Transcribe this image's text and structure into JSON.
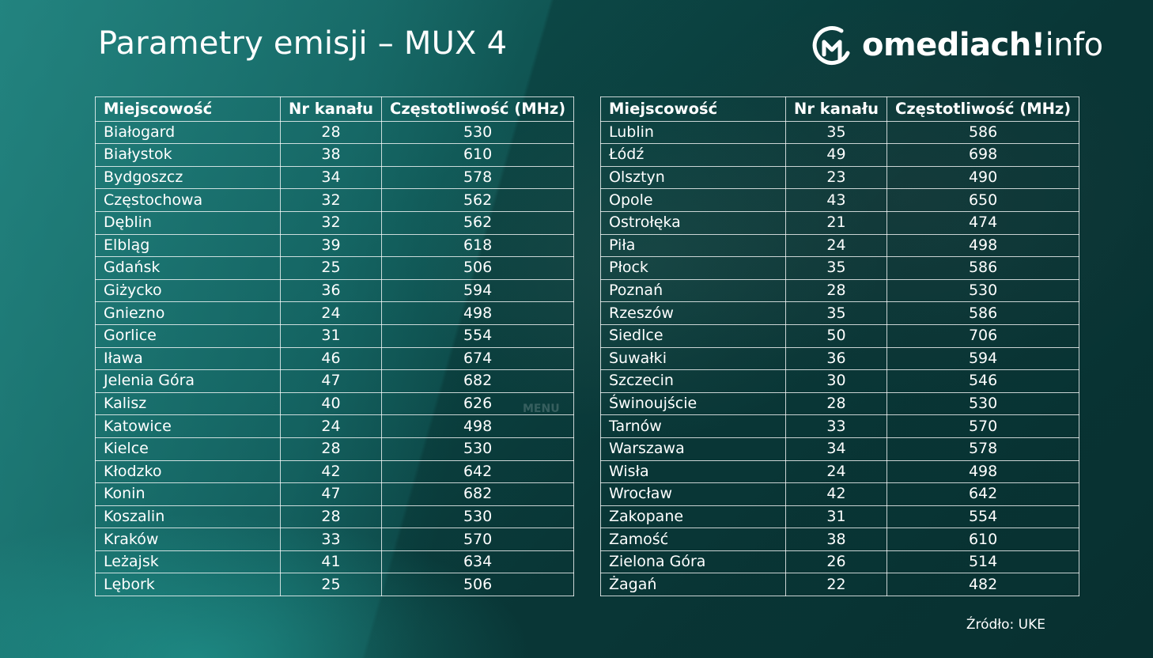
{
  "header": {
    "title": "Parametry emisji – MUX 4",
    "logo_bold": "omediach",
    "logo_light": "info",
    "logo_dot": "!"
  },
  "table": {
    "headers": {
      "city": "Miejscowość",
      "channel": "Nr kanału",
      "frequency": "Częstotliwość (MHz)"
    },
    "left_rows": [
      {
        "city": "Białogard",
        "channel": "28",
        "frequency": "530"
      },
      {
        "city": "Białystok",
        "channel": "38",
        "frequency": "610"
      },
      {
        "city": "Bydgoszcz",
        "channel": "34",
        "frequency": "578"
      },
      {
        "city": "Częstochowa",
        "channel": "32",
        "frequency": "562"
      },
      {
        "city": "Dęblin",
        "channel": "32",
        "frequency": "562"
      },
      {
        "city": "Elbląg",
        "channel": "39",
        "frequency": "618"
      },
      {
        "city": "Gdańsk",
        "channel": "25",
        "frequency": "506"
      },
      {
        "city": "Giżycko",
        "channel": "36",
        "frequency": "594"
      },
      {
        "city": "Gniezno",
        "channel": "24",
        "frequency": "498"
      },
      {
        "city": "Gorlice",
        "channel": "31",
        "frequency": "554"
      },
      {
        "city": "Iława",
        "channel": "46",
        "frequency": "674"
      },
      {
        "city": "Jelenia Góra",
        "channel": "47",
        "frequency": "682"
      },
      {
        "city": "Kalisz",
        "channel": "40",
        "frequency": "626"
      },
      {
        "city": "Katowice",
        "channel": "24",
        "frequency": "498"
      },
      {
        "city": "Kielce",
        "channel": "28",
        "frequency": "530"
      },
      {
        "city": "Kłodzko",
        "channel": "42",
        "frequency": "642"
      },
      {
        "city": "Konin",
        "channel": "47",
        "frequency": "682"
      },
      {
        "city": "Koszalin",
        "channel": "28",
        "frequency": "530"
      },
      {
        "city": "Kraków",
        "channel": "33",
        "frequency": "570"
      },
      {
        "city": "Leżajsk",
        "channel": "41",
        "frequency": "634"
      },
      {
        "city": "Lębork",
        "channel": "25",
        "frequency": "506"
      }
    ],
    "right_rows": [
      {
        "city": "Lublin",
        "channel": "35",
        "frequency": "586"
      },
      {
        "city": "Łódź",
        "channel": "49",
        "frequency": "698"
      },
      {
        "city": "Olsztyn",
        "channel": "23",
        "frequency": "490"
      },
      {
        "city": "Opole",
        "channel": "43",
        "frequency": "650"
      },
      {
        "city": "Ostrołęka",
        "channel": "21",
        "frequency": "474"
      },
      {
        "city": "Piła",
        "channel": "24",
        "frequency": "498"
      },
      {
        "city": "Płock",
        "channel": "35",
        "frequency": "586"
      },
      {
        "city": "Poznań",
        "channel": "28",
        "frequency": "530"
      },
      {
        "city": "Rzeszów",
        "channel": "35",
        "frequency": "586"
      },
      {
        "city": "Siedlce",
        "channel": "50",
        "frequency": "706"
      },
      {
        "city": "Suwałki",
        "channel": "36",
        "frequency": "594"
      },
      {
        "city": "Szczecin",
        "channel": "30",
        "frequency": "546"
      },
      {
        "city": "Świnoujście",
        "channel": "28",
        "frequency": "530"
      },
      {
        "city": "Tarnów",
        "channel": "33",
        "frequency": "570"
      },
      {
        "city": "Warszawa",
        "channel": "34",
        "frequency": "578"
      },
      {
        "city": "Wisła",
        "channel": "24",
        "frequency": "498"
      },
      {
        "city": "Wrocław",
        "channel": "42",
        "frequency": "642"
      },
      {
        "city": "Zakopane",
        "channel": "31",
        "frequency": "554"
      },
      {
        "city": "Zamość",
        "channel": "38",
        "frequency": "610"
      },
      {
        "city": "Zielona Góra",
        "channel": "26",
        "frequency": "514"
      },
      {
        "city": "Żagań",
        "channel": "22",
        "frequency": "482"
      }
    ]
  },
  "footer": {
    "source": "Źródło: UKE"
  },
  "background": {
    "ghost_menu": "MENU"
  },
  "colors": {
    "background_dark": "#0b3f3f",
    "background_teal": "#1c6d6a",
    "text": "#ffffff"
  }
}
